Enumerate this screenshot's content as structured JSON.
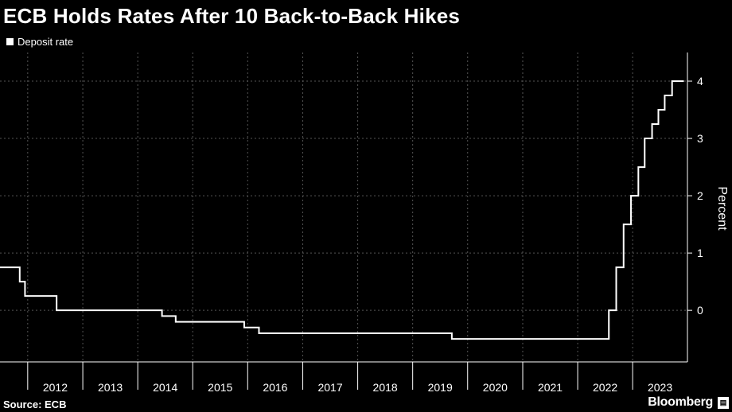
{
  "header": {
    "title": "ECB Holds Rates After 10 Back-to-Back Hikes"
  },
  "footer": {
    "source": "Source: ECB",
    "brand": "Bloomberg"
  },
  "colors": {
    "background": "#000000",
    "line": "#ffffff",
    "grid": "#555555"
  },
  "chart_data": {
    "type": "line",
    "step": true,
    "title": "ECB Holds Rates After 10 Back-to-Back Hikes",
    "xlabel": "",
    "ylabel": "Percent",
    "ylim": [
      -0.9,
      4.5
    ],
    "yticks": [
      0,
      1,
      2,
      3,
      4
    ],
    "xlim": [
      "2011-07-01",
      "2023-12-31"
    ],
    "xticks": [
      "2012",
      "2013",
      "2014",
      "2015",
      "2016",
      "2017",
      "2018",
      "2019",
      "2020",
      "2021",
      "2022",
      "2023"
    ],
    "grid": true,
    "legend_position": "top-left",
    "series": [
      {
        "name": "Deposit rate",
        "x": [
          "2011-07-13",
          "2011-11-09",
          "2011-12-14",
          "2012-07-11",
          "2014-06-11",
          "2014-09-10",
          "2015-12-09",
          "2016-03-16",
          "2019-09-18",
          "2022-07-27",
          "2022-09-14",
          "2022-11-02",
          "2022-12-21",
          "2023-02-08",
          "2023-03-22",
          "2023-05-10",
          "2023-06-21",
          "2023-08-02",
          "2023-09-20",
          "2023-10-26"
        ],
        "y": [
          0.75,
          0.5,
          0.25,
          0,
          -0.1,
          -0.2,
          -0.3,
          -0.4,
          -0.5,
          0,
          0.75,
          1.5,
          2,
          2.5,
          3,
          3.25,
          3.5,
          3.75,
          4,
          4
        ]
      }
    ]
  }
}
